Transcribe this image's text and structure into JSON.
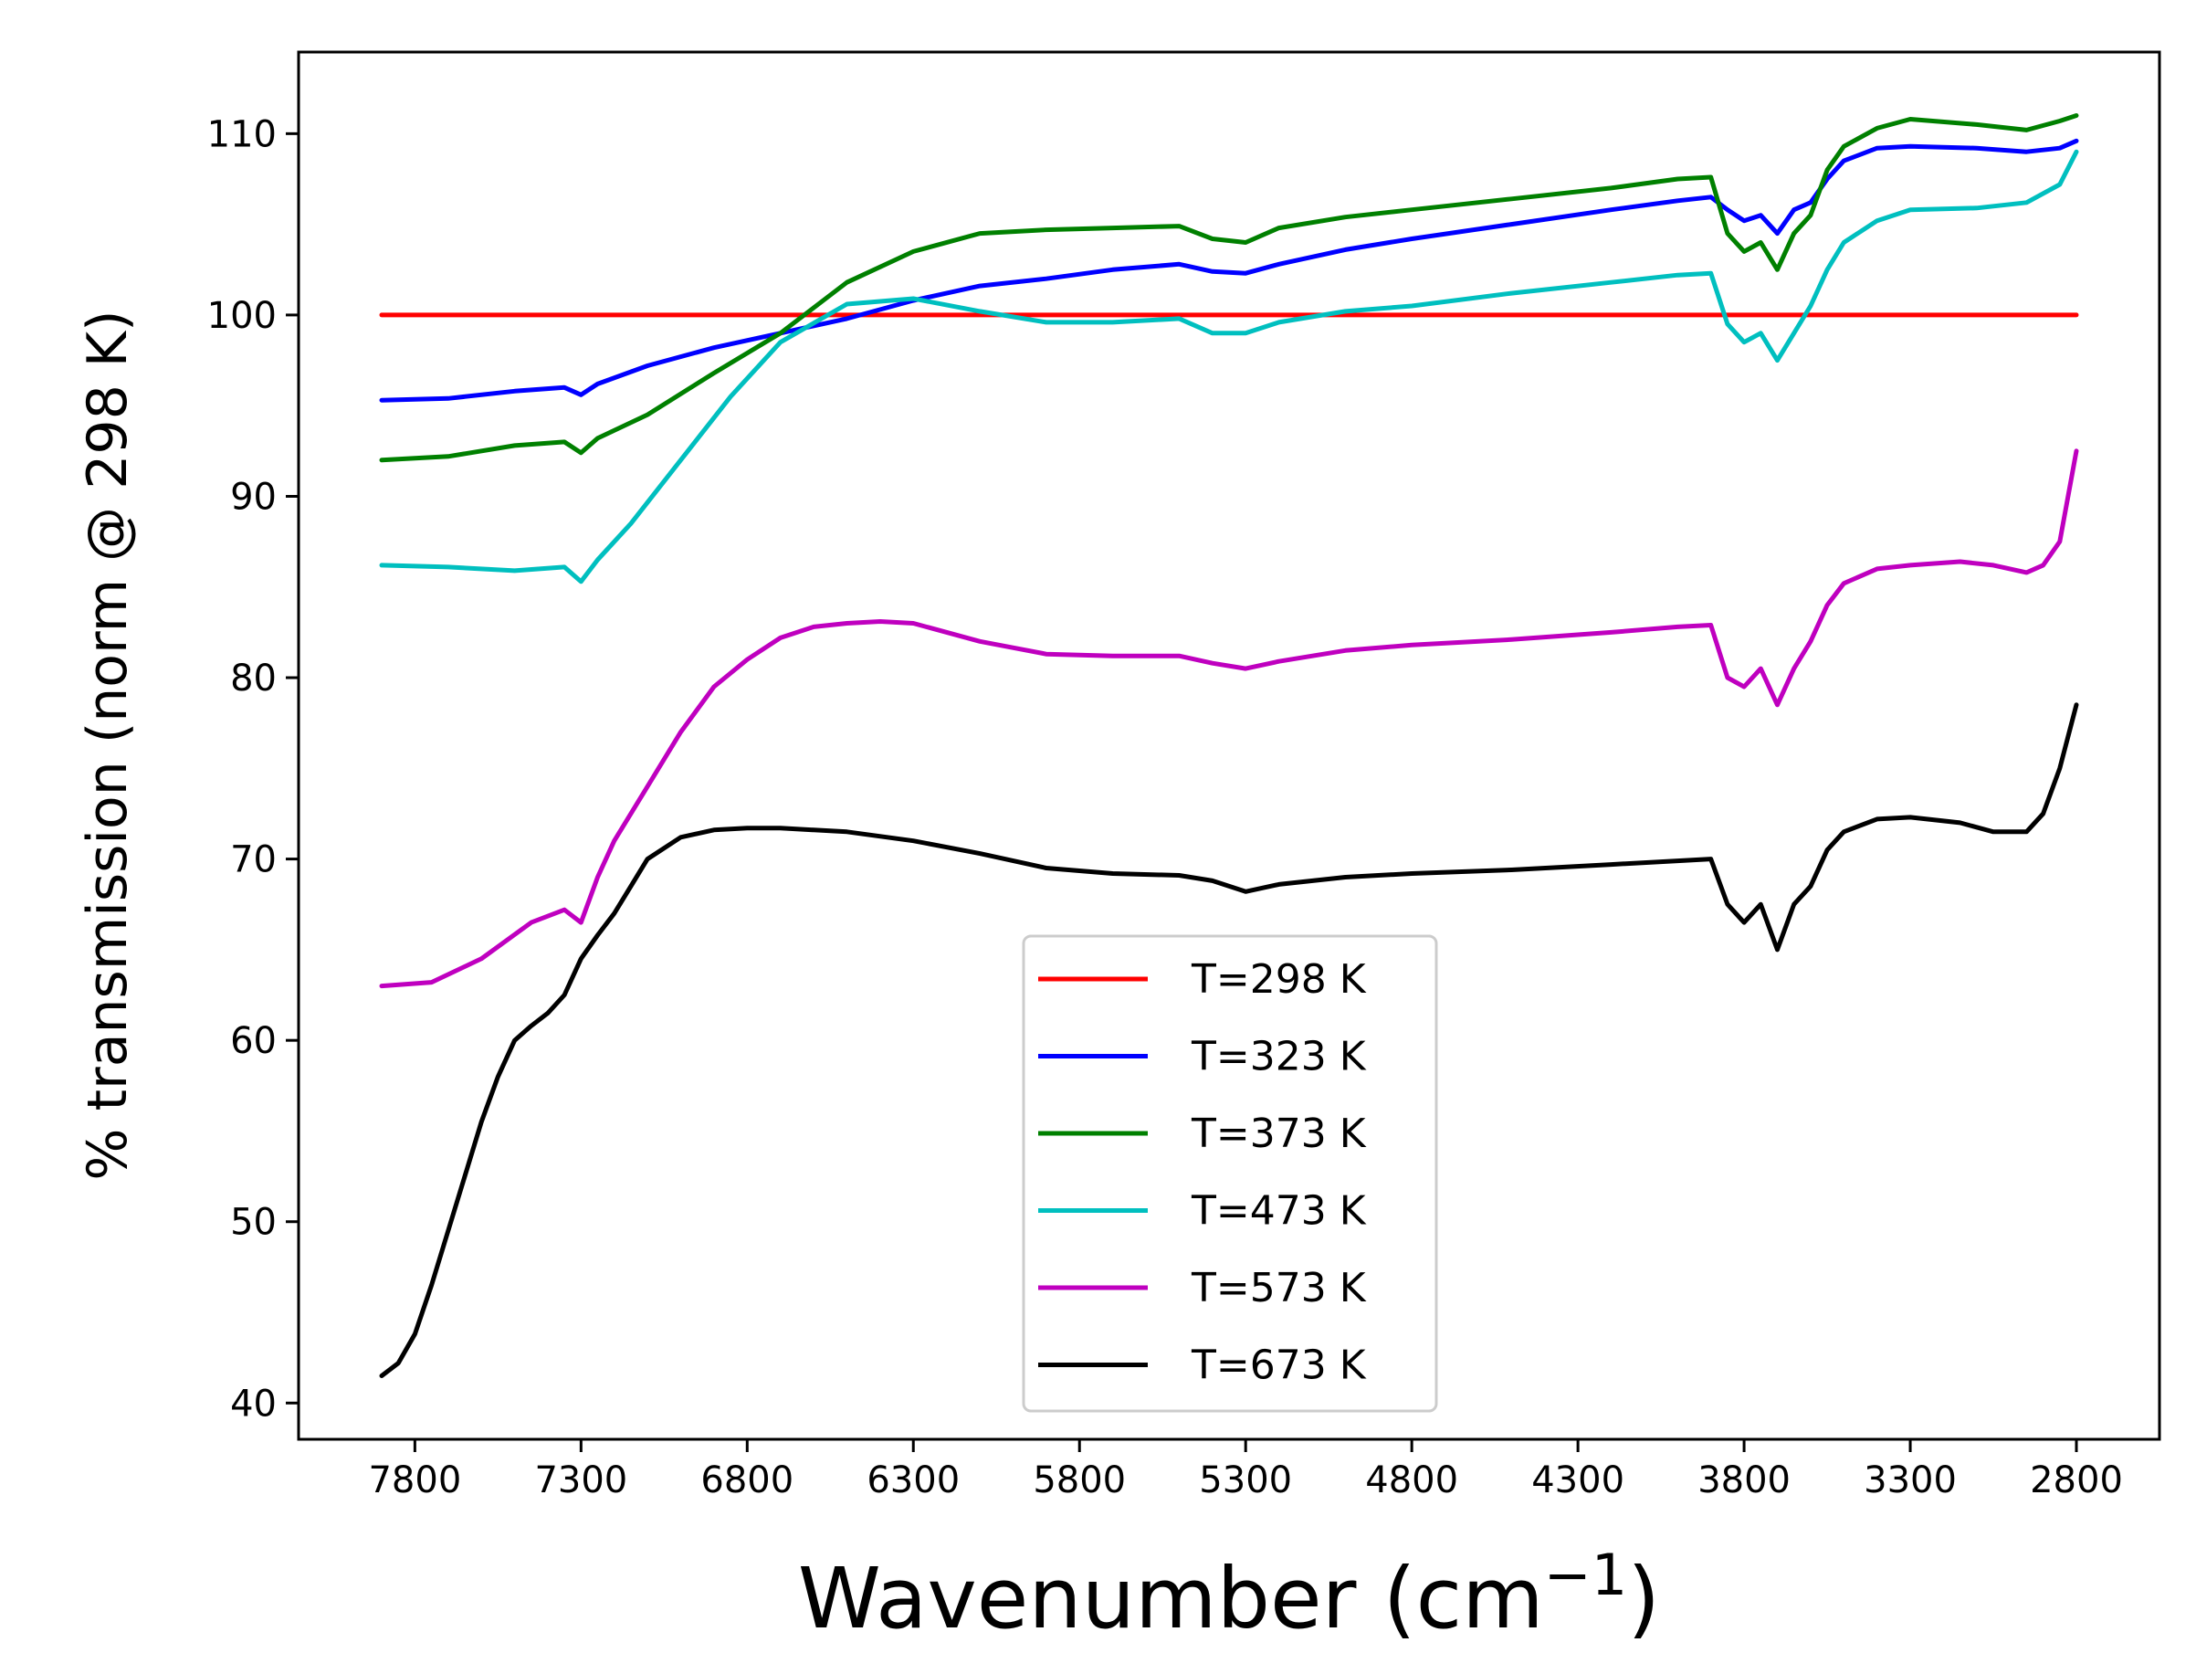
{
  "chart_data": {
    "type": "line",
    "title": "",
    "xlabel": "Wavenumber (cm",
    "xlabel_sup": "−1",
    "xlabel_close": ")",
    "ylabel": "% transmission (norm @ 298 K)",
    "xlim": [
      8150,
      2550
    ],
    "ylim": [
      38,
      114.5
    ],
    "x_reversed": true,
    "xticks": [
      7800,
      7300,
      6800,
      6300,
      5800,
      5300,
      4800,
      4300,
      3800,
      3300,
      2800
    ],
    "yticks": [
      40,
      50,
      60,
      70,
      80,
      90,
      100,
      110
    ],
    "legend_position": "lower-center",
    "grid": false,
    "series": [
      {
        "name": "T=298 K",
        "color": "#ff0000",
        "x": [
          7900,
          2800
        ],
        "y": [
          100,
          100
        ]
      },
      {
        "name": "T=323 K",
        "color": "#0000ff",
        "x": [
          7900,
          7700,
          7500,
          7350,
          7300,
          7250,
          7100,
          6900,
          6700,
          6500,
          6300,
          6100,
          5900,
          5700,
          5500,
          5400,
          5300,
          5200,
          5000,
          4800,
          4500,
          4200,
          4000,
          3900,
          3850,
          3800,
          3750,
          3700,
          3650,
          3600,
          3550,
          3500,
          3400,
          3300,
          3100,
          2950,
          2850,
          2800
        ],
        "y": [
          95.3,
          95.4,
          95.8,
          96.0,
          95.6,
          96.2,
          97.2,
          98.2,
          99.0,
          99.8,
          100.8,
          101.6,
          102.0,
          102.5,
          102.8,
          102.4,
          102.3,
          102.8,
          103.6,
          104.2,
          105.0,
          105.8,
          106.3,
          106.5,
          105.8,
          105.2,
          105.5,
          104.5,
          105.8,
          106.2,
          107.5,
          108.5,
          109.2,
          109.3,
          109.2,
          109.0,
          109.2,
          109.6
        ]
      },
      {
        "name": "T=373 K",
        "color": "#008000",
        "x": [
          7900,
          7700,
          7500,
          7350,
          7300,
          7250,
          7100,
          6900,
          6700,
          6500,
          6300,
          6100,
          5900,
          5700,
          5500,
          5400,
          5300,
          5200,
          5000,
          4800,
          4500,
          4200,
          4000,
          3900,
          3850,
          3800,
          3750,
          3700,
          3650,
          3600,
          3550,
          3500,
          3400,
          3300,
          3100,
          2950,
          2850,
          2800
        ],
        "y": [
          92.0,
          92.2,
          92.8,
          93.0,
          92.4,
          93.2,
          94.5,
          96.8,
          99.0,
          101.8,
          103.5,
          104.5,
          104.7,
          104.8,
          104.9,
          104.2,
          104.0,
          104.8,
          105.4,
          105.8,
          106.4,
          107.0,
          107.5,
          107.6,
          104.5,
          103.5,
          104.0,
          102.5,
          104.5,
          105.5,
          108.0,
          109.3,
          110.3,
          110.8,
          110.5,
          110.2,
          110.7,
          111.0
        ]
      },
      {
        "name": "T=473 K",
        "color": "#00bfbf",
        "x": [
          7900,
          7700,
          7500,
          7350,
          7300,
          7250,
          7150,
          7000,
          6850,
          6700,
          6500,
          6300,
          6100,
          5900,
          5700,
          5500,
          5400,
          5300,
          5200,
          5000,
          4800,
          4500,
          4200,
          4000,
          3900,
          3850,
          3800,
          3750,
          3700,
          3650,
          3600,
          3550,
          3500,
          3400,
          3300,
          3100,
          2950,
          2850,
          2800
        ],
        "y": [
          86.2,
          86.1,
          85.9,
          86.1,
          85.3,
          86.5,
          88.5,
          92.0,
          95.5,
          98.5,
          100.6,
          100.9,
          100.2,
          99.6,
          99.6,
          99.8,
          99.0,
          99.0,
          99.6,
          100.2,
          100.5,
          101.2,
          101.8,
          102.2,
          102.3,
          99.5,
          98.5,
          99.0,
          97.5,
          99.0,
          100.5,
          102.5,
          104.0,
          105.2,
          105.8,
          105.9,
          106.2,
          107.2,
          109.0
        ]
      },
      {
        "name": "T=573 K",
        "color": "#bf00bf",
        "x": [
          7900,
          7750,
          7600,
          7450,
          7350,
          7300,
          7250,
          7200,
          7100,
          7000,
          6900,
          6800,
          6700,
          6600,
          6500,
          6400,
          6300,
          6100,
          5900,
          5700,
          5500,
          5400,
          5300,
          5200,
          5000,
          4800,
          4500,
          4200,
          4000,
          3900,
          3850,
          3800,
          3750,
          3700,
          3650,
          3600,
          3550,
          3500,
          3400,
          3300,
          3150,
          3050,
          2950,
          2900,
          2850,
          2800
        ],
        "y": [
          63.0,
          63.2,
          64.5,
          66.5,
          67.2,
          66.5,
          69.0,
          71.0,
          74.0,
          77.0,
          79.5,
          81.0,
          82.2,
          82.8,
          83.0,
          83.1,
          83.0,
          82.0,
          81.3,
          81.2,
          81.2,
          80.8,
          80.5,
          80.9,
          81.5,
          81.8,
          82.1,
          82.5,
          82.8,
          82.9,
          80.0,
          79.5,
          80.5,
          78.5,
          80.5,
          82.0,
          84.0,
          85.2,
          86.0,
          86.2,
          86.4,
          86.2,
          85.8,
          86.2,
          87.5,
          92.5
        ]
      },
      {
        "name": "T=673 K",
        "color": "#000000",
        "x": [
          7900,
          7850,
          7800,
          7750,
          7700,
          7650,
          7600,
          7550,
          7500,
          7450,
          7400,
          7350,
          7300,
          7250,
          7200,
          7150,
          7100,
          7000,
          6900,
          6800,
          6700,
          6600,
          6500,
          6300,
          6100,
          5900,
          5700,
          5500,
          5400,
          5300,
          5200,
          5000,
          4800,
          4500,
          4200,
          4000,
          3900,
          3850,
          3800,
          3750,
          3700,
          3650,
          3600,
          3550,
          3500,
          3400,
          3300,
          3150,
          3050,
          2950,
          2900,
          2850,
          2800
        ],
        "y": [
          41.5,
          42.2,
          43.8,
          46.5,
          49.5,
          52.5,
          55.5,
          58.0,
          60.0,
          60.8,
          61.5,
          62.5,
          64.5,
          65.8,
          67.0,
          68.5,
          70.0,
          71.2,
          71.6,
          71.7,
          71.7,
          71.6,
          71.5,
          71.0,
          70.3,
          69.5,
          69.2,
          69.1,
          68.8,
          68.2,
          68.6,
          69.0,
          69.2,
          69.4,
          69.7,
          69.9,
          70.0,
          67.5,
          66.5,
          67.5,
          65.0,
          67.5,
          68.5,
          70.5,
          71.5,
          72.2,
          72.3,
          72.0,
          71.5,
          71.5,
          72.5,
          75.0,
          78.5
        ]
      }
    ]
  }
}
